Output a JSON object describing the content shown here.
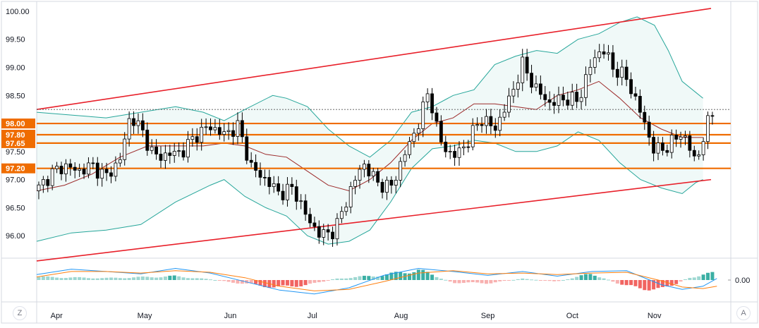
{
  "chart_data": [
    {
      "type": "candlestick",
      "title": "",
      "x_ticks": [
        "Apr",
        "May",
        "Jun",
        "Jul",
        "Aug",
        "Sep",
        "Oct",
        "Nov"
      ],
      "y_ticks": [
        "100.00",
        "99.50",
        "99.00",
        "98.50",
        "98.00",
        "97.50",
        "97.00",
        "96.50",
        "96.00"
      ],
      "ylim": [
        95.6,
        100.15
      ],
      "grid": false,
      "horizontal_levels": [
        {
          "label": "98.00",
          "value": 98.0
        },
        {
          "label": "97.80",
          "value": 97.8
        },
        {
          "label": "97.65",
          "value": 97.65
        },
        {
          "label": "97.20",
          "value": 97.2
        }
      ],
      "current_price_line": 98.25,
      "channel_lines": [
        {
          "name": "upper",
          "start": [
            0,
            98.25
          ],
          "end": [
            1,
            100.05
          ]
        },
        {
          "name": "lower",
          "start": [
            0,
            95.55
          ],
          "end": [
            1,
            97.0
          ]
        }
      ],
      "bollinger_upper": [
        [
          0,
          98.2
        ],
        [
          0.05,
          98.15
        ],
        [
          0.1,
          98.1
        ],
        [
          0.15,
          98.2
        ],
        [
          0.2,
          98.3
        ],
        [
          0.24,
          98.2
        ],
        [
          0.27,
          98.05
        ],
        [
          0.3,
          98.25
        ],
        [
          0.34,
          98.5
        ],
        [
          0.36,
          98.45
        ],
        [
          0.39,
          98.3
        ],
        [
          0.42,
          97.9
        ],
        [
          0.45,
          97.6
        ],
        [
          0.48,
          97.4
        ],
        [
          0.51,
          97.7
        ],
        [
          0.54,
          98.2
        ],
        [
          0.57,
          98.3
        ],
        [
          0.6,
          98.5
        ],
        [
          0.63,
          98.6
        ],
        [
          0.66,
          99.05
        ],
        [
          0.69,
          99.2
        ],
        [
          0.72,
          99.3
        ],
        [
          0.75,
          99.25
        ],
        [
          0.78,
          99.5
        ],
        [
          0.81,
          99.6
        ],
        [
          0.84,
          99.8
        ],
        [
          0.865,
          99.9
        ],
        [
          0.89,
          99.75
        ],
        [
          0.91,
          99.3
        ],
        [
          0.93,
          98.75
        ],
        [
          0.95,
          98.55
        ],
        [
          0.96,
          98.45
        ]
      ],
      "bollinger_middle": [
        [
          0,
          96.8
        ],
        [
          0.04,
          96.9
        ],
        [
          0.08,
          97.1
        ],
        [
          0.12,
          97.4
        ],
        [
          0.16,
          97.6
        ],
        [
          0.2,
          97.6
        ],
        [
          0.24,
          97.6
        ],
        [
          0.27,
          97.65
        ],
        [
          0.3,
          97.6
        ],
        [
          0.33,
          97.45
        ],
        [
          0.36,
          97.4
        ],
        [
          0.39,
          97.15
        ],
        [
          0.42,
          96.9
        ],
        [
          0.45,
          96.8
        ],
        [
          0.48,
          97.0
        ],
        [
          0.51,
          97.3
        ],
        [
          0.54,
          97.7
        ],
        [
          0.57,
          98.0
        ],
        [
          0.6,
          98.1
        ],
        [
          0.63,
          98.35
        ],
        [
          0.66,
          98.35
        ],
        [
          0.69,
          98.3
        ],
        [
          0.72,
          98.25
        ],
        [
          0.75,
          98.5
        ],
        [
          0.78,
          98.6
        ],
        [
          0.81,
          98.75
        ],
        [
          0.84,
          98.45
        ],
        [
          0.87,
          98.1
        ],
        [
          0.9,
          97.9
        ],
        [
          0.93,
          97.75
        ],
        [
          0.96,
          97.75
        ]
      ],
      "bollinger_lower": [
        [
          0,
          95.9
        ],
        [
          0.05,
          96.05
        ],
        [
          0.1,
          96.1
        ],
        [
          0.15,
          96.2
        ],
        [
          0.2,
          96.6
        ],
        [
          0.25,
          96.9
        ],
        [
          0.27,
          97.0
        ],
        [
          0.3,
          96.7
        ],
        [
          0.33,
          96.5
        ],
        [
          0.36,
          96.35
        ],
        [
          0.39,
          96.0
        ],
        [
          0.42,
          95.85
        ],
        [
          0.45,
          95.9
        ],
        [
          0.48,
          96.1
        ],
        [
          0.51,
          96.6
        ],
        [
          0.54,
          97.2
        ],
        [
          0.57,
          97.55
        ],
        [
          0.6,
          97.6
        ],
        [
          0.63,
          97.7
        ],
        [
          0.66,
          97.65
        ],
        [
          0.69,
          97.5
        ],
        [
          0.72,
          97.5
        ],
        [
          0.75,
          97.6
        ],
        [
          0.78,
          97.85
        ],
        [
          0.81,
          97.7
        ],
        [
          0.84,
          97.3
        ],
        [
          0.87,
          97.0
        ],
        [
          0.9,
          96.85
        ],
        [
          0.93,
          96.75
        ],
        [
          0.95,
          96.95
        ],
        [
          0.96,
          97.0
        ]
      ],
      "close_path": [
        [
          0,
          96.8
        ],
        [
          0.02,
          97.1
        ],
        [
          0.04,
          97.25
        ],
        [
          0.06,
          97.15
        ],
        [
          0.08,
          97.25
        ],
        [
          0.1,
          97.05
        ],
        [
          0.12,
          97.35
        ],
        [
          0.135,
          98.15
        ],
        [
          0.15,
          97.9
        ],
        [
          0.17,
          97.4
        ],
        [
          0.19,
          97.45
        ],
        [
          0.21,
          97.5
        ],
        [
          0.23,
          97.8
        ],
        [
          0.25,
          97.95
        ],
        [
          0.27,
          97.8
        ],
        [
          0.29,
          97.95
        ],
        [
          0.31,
          97.2
        ],
        [
          0.33,
          97.0
        ],
        [
          0.35,
          96.75
        ],
        [
          0.37,
          96.85
        ],
        [
          0.39,
          96.3
        ],
        [
          0.41,
          96.0
        ],
        [
          0.43,
          96.1
        ],
        [
          0.45,
          96.75
        ],
        [
          0.47,
          97.3
        ],
        [
          0.49,
          96.95
        ],
        [
          0.51,
          96.85
        ],
        [
          0.53,
          97.45
        ],
        [
          0.55,
          98.0
        ],
        [
          0.565,
          98.6
        ],
        [
          0.58,
          97.7
        ],
        [
          0.6,
          97.4
        ],
        [
          0.62,
          97.65
        ],
        [
          0.64,
          98.1
        ],
        [
          0.66,
          97.9
        ],
        [
          0.68,
          98.4
        ],
        [
          0.7,
          99.05
        ],
        [
          0.72,
          98.6
        ],
        [
          0.74,
          98.35
        ],
        [
          0.76,
          98.45
        ],
        [
          0.78,
          98.4
        ],
        [
          0.8,
          99.1
        ],
        [
          0.815,
          99.35
        ],
        [
          0.83,
          99.0
        ],
        [
          0.85,
          98.8
        ],
        [
          0.87,
          98.2
        ],
        [
          0.89,
          97.5
        ],
        [
          0.91,
          97.6
        ],
        [
          0.93,
          97.85
        ],
        [
          0.95,
          97.3
        ],
        [
          0.965,
          97.95
        ],
        [
          0.98,
          98.35
        ]
      ],
      "oscillator": {
        "label": "0.00",
        "value": 0.0,
        "histogram": [
          [
            0,
            0.25
          ],
          [
            0.1,
            0.15
          ],
          [
            0.2,
            0.3
          ],
          [
            0.25,
            0.05
          ],
          [
            0.3,
            -0.3
          ],
          [
            0.35,
            -0.6
          ],
          [
            0.4,
            -0.3
          ],
          [
            0.43,
            0.1
          ],
          [
            0.5,
            0.4
          ],
          [
            0.55,
            0.8
          ],
          [
            0.6,
            -0.2
          ],
          [
            0.65,
            -0.25
          ],
          [
            0.7,
            0.1
          ],
          [
            0.75,
            -0.1
          ],
          [
            0.8,
            0.5
          ],
          [
            0.85,
            -0.5
          ],
          [
            0.9,
            -0.8
          ],
          [
            0.94,
            0.2
          ],
          [
            0.98,
            0.6
          ]
        ],
        "line_fast": [
          [
            0,
            0.35
          ],
          [
            0.05,
            0.7
          ],
          [
            0.1,
            0.55
          ],
          [
            0.15,
            0.4
          ],
          [
            0.2,
            0.75
          ],
          [
            0.25,
            0.45
          ],
          [
            0.3,
            -0.1
          ],
          [
            0.35,
            -0.65
          ],
          [
            0.4,
            -0.9
          ],
          [
            0.45,
            -0.5
          ],
          [
            0.5,
            0.3
          ],
          [
            0.55,
            0.75
          ],
          [
            0.6,
            0.55
          ],
          [
            0.65,
            0.3
          ],
          [
            0.7,
            0.55
          ],
          [
            0.75,
            0.25
          ],
          [
            0.8,
            0.55
          ],
          [
            0.85,
            0.6
          ],
          [
            0.9,
            -0.3
          ],
          [
            0.93,
            -0.6
          ],
          [
            0.96,
            -0.4
          ],
          [
            0.98,
            0.1
          ]
        ],
        "line_slow": [
          [
            0,
            0.2
          ],
          [
            0.05,
            0.55
          ],
          [
            0.1,
            0.55
          ],
          [
            0.15,
            0.45
          ],
          [
            0.2,
            0.6
          ],
          [
            0.25,
            0.5
          ],
          [
            0.3,
            0.15
          ],
          [
            0.35,
            -0.4
          ],
          [
            0.4,
            -0.7
          ],
          [
            0.45,
            -0.6
          ],
          [
            0.5,
            -0.1
          ],
          [
            0.55,
            0.45
          ],
          [
            0.6,
            0.6
          ],
          [
            0.65,
            0.4
          ],
          [
            0.7,
            0.45
          ],
          [
            0.75,
            0.35
          ],
          [
            0.8,
            0.45
          ],
          [
            0.85,
            0.5
          ],
          [
            0.9,
            -0.05
          ],
          [
            0.93,
            -0.45
          ],
          [
            0.96,
            -0.55
          ],
          [
            0.98,
            -0.4
          ]
        ]
      }
    }
  ],
  "colors": {
    "channel": "#e8202a",
    "level": "#ef6c00",
    "level_label_bg": "#ef6c00",
    "candle": "#000000",
    "bollinger": "#26a69a",
    "mid_band": "#9c2a2a",
    "hist_pos": "#26a69a",
    "hist_neg": "#ef5350",
    "osc_fast": "#2196f3",
    "osc_slow": "#ff7f0e"
  },
  "ui": {
    "left_button": "Z",
    "right_button": "A"
  }
}
